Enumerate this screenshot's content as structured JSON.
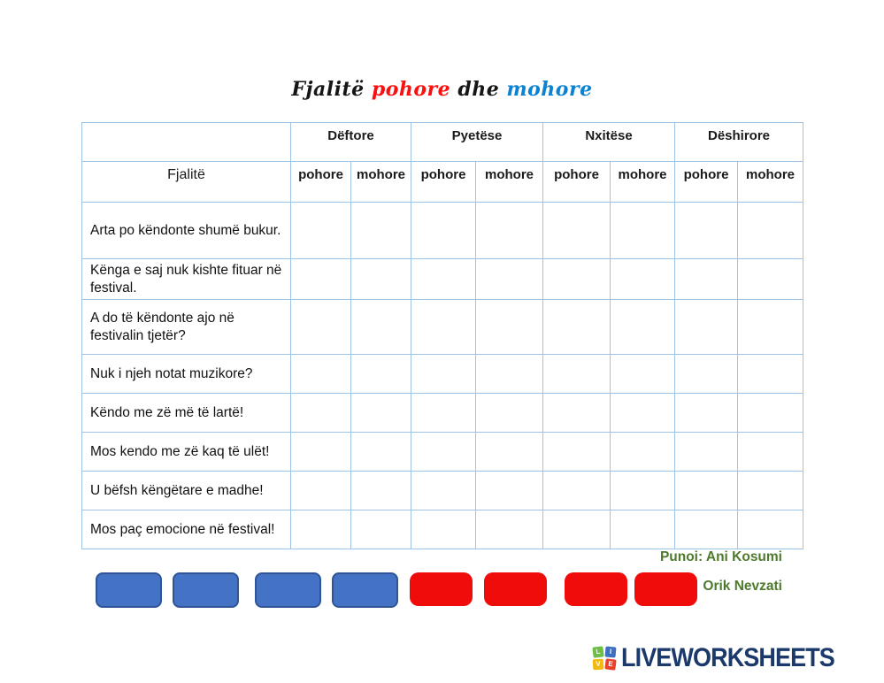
{
  "colors": {
    "title_black": "#161616",
    "title_red": "#FB0F0F",
    "title_blue": "#0C82D2",
    "table_border": "#9DC3E6",
    "chip_blue": "#4472C4",
    "chip_blue_border": "#2F5597",
    "chip_red": "#F10C0C",
    "credit_green": "#4E7A2D",
    "logo_navy": "#1B3A6B",
    "tile_green": "#6CBE45",
    "tile_blue": "#3E6FC1",
    "tile_yellow": "#F2B90D",
    "tile_red": "#E8402A"
  },
  "title": {
    "part1": "Fjalitë",
    "part2": "pohore",
    "part3": "dhe",
    "part4": "mohore"
  },
  "table": {
    "row_header_label": "Fjalitë",
    "group_headers": [
      "Dëftore",
      "Pyetëse",
      "Nxitëse",
      "Dëshirore"
    ],
    "subheaders": [
      "pohore",
      "mohore",
      "pohore",
      "mohore",
      "pohore",
      "mohore",
      "pohore",
      "mohore"
    ],
    "rows": [
      "Arta po këndonte shumë bukur.",
      "Kënga e saj nuk kishte fituar në festival.",
      "A do të këndonte ajo në festivalin tjetër?",
      "Nuk i njeh notat muzikore?",
      "Këndo me zë më të lartë!",
      "Mos kendo me zë kaq të ulët!",
      "U bëfsh këngëtare e madhe!",
      "Mos paç emocione në festival!"
    ]
  },
  "chips": {
    "blue_count": 4,
    "red_count": 4
  },
  "credits": {
    "line1": "Punoi: Ani Kosumi",
    "line2": "Orik Nevzati"
  },
  "footer": {
    "logo_text": "LIVEWORKSHEETS",
    "logo_tiles": [
      "L",
      "I",
      "V",
      "E"
    ]
  }
}
